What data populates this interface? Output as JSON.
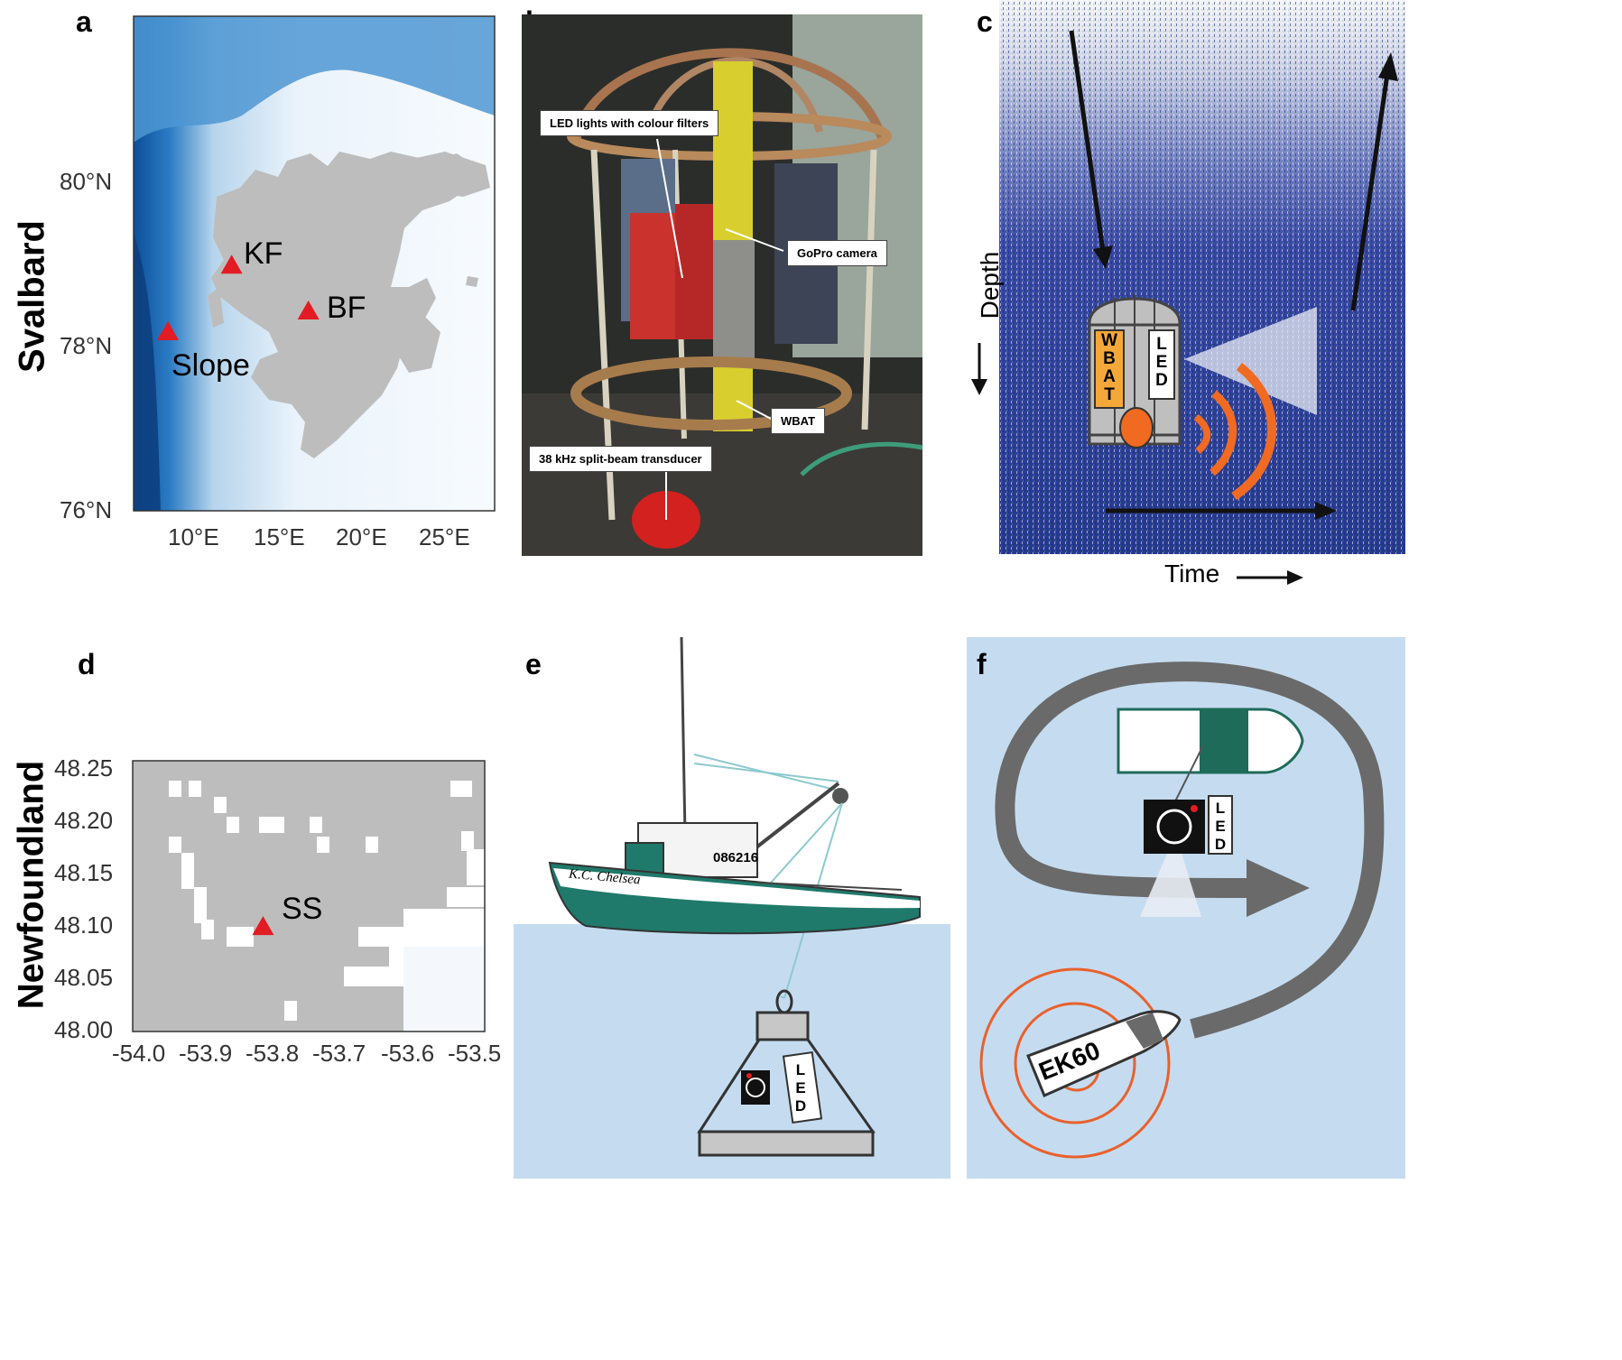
{
  "figure": {
    "panels": {
      "a": {
        "letter": "a",
        "region": "Svalbard",
        "lat_ticks": [
          "80°N",
          "78°N",
          "76°N"
        ],
        "lon_ticks": [
          "10°E",
          "15°E",
          "20°E",
          "25°E"
        ],
        "sites": [
          {
            "name": "KF",
            "lon": 11.9,
            "lat": 78.9
          },
          {
            "name": "BF",
            "lon": 16.6,
            "lat": 78.35
          },
          {
            "name": "Slope",
            "lon": 8.0,
            "lat": 78.1
          }
        ],
        "colors": {
          "land": "#bdbdbd",
          "shallow": "#eef5fb",
          "deep": "#1a6fb8",
          "marker": "#e31b23"
        }
      },
      "b": {
        "letter": "b",
        "labels": {
          "led": "LED lights with colour filters",
          "gopro": "GoPro camera",
          "wbat": "WBAT",
          "transducer": "38 kHz split-beam transducer"
        }
      },
      "c": {
        "letter": "c",
        "y_axis": "Depth",
        "x_axis": "Time",
        "cage_left_label": [
          "W",
          "B",
          "A",
          "T"
        ],
        "cage_right_label": [
          "L",
          "E",
          "D"
        ],
        "colors": {
          "echogram": "#2a3f9a",
          "wbat": "#f4a83a",
          "sonar": "#f06a22"
        }
      },
      "d": {
        "letter": "d",
        "region": "Newfoundland",
        "lat_ticks": [
          "48.25",
          "48.20",
          "48.15",
          "48.10",
          "48.05",
          "48.00"
        ],
        "lon_ticks": [
          "-54.0",
          "-53.9",
          "-53.8",
          "-53.7",
          "-53.6",
          "-53.5"
        ],
        "sites": [
          {
            "name": "SS",
            "lon": -53.82,
            "lat": 48.09
          }
        ],
        "colors": {
          "land": "#bdbdbd",
          "water": "#ffffff",
          "marker": "#e31b23"
        }
      },
      "e": {
        "letter": "e",
        "vessel_name": "K.C. Chelsea",
        "vessel_number": "086216",
        "frame_label": [
          "L",
          "E",
          "D"
        ],
        "colors": {
          "hull": "#1f7a6b",
          "sea": "#c5dcf0"
        }
      },
      "f": {
        "letter": "f",
        "echosounder_label": "EK60",
        "camera_label": [
          "L",
          "E",
          "D"
        ],
        "colors": {
          "sea": "#c5dcf0",
          "track": "#6a6a6a",
          "boat": "#1f6b5a",
          "rings": "#e8612c"
        }
      }
    }
  }
}
